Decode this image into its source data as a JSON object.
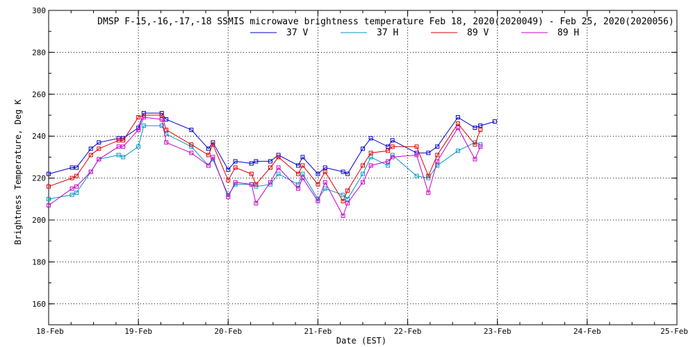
{
  "chart_data": {
    "type": "line",
    "title": "DMSP F-15,-16,-17,-18 SSMIS microwave brightness temperature Feb 18, 2020(2020049) - Feb 25, 2020(2020056)",
    "xlabel": "Date (EST)",
    "ylabel": "Brightness Temperature, Deg K",
    "x_ticks": [
      "18-Feb",
      "19-Feb",
      "20-Feb",
      "21-Feb",
      "22-Feb",
      "23-Feb",
      "24-Feb",
      "25-Feb"
    ],
    "x_range_days": [
      0,
      7
    ],
    "ylim": [
      150,
      300
    ],
    "y_ticks": [
      160,
      180,
      200,
      220,
      240,
      260,
      280,
      300
    ],
    "grid": true,
    "legend_position": "top-center",
    "series": [
      {
        "name": "37 V",
        "color": "#0000c8",
        "x": [
          0.0,
          0.26,
          0.31,
          0.47,
          0.56,
          0.78,
          0.83,
          1.0,
          1.06,
          1.26,
          1.31,
          1.59,
          1.78,
          1.83,
          2.0,
          2.08,
          2.26,
          2.31,
          2.47,
          2.56,
          2.78,
          2.83,
          3.0,
          3.08,
          3.28,
          3.33,
          3.5,
          3.59,
          3.78,
          3.83,
          4.1,
          4.23,
          4.33,
          4.56,
          4.75,
          4.81,
          4.97
        ],
        "values": [
          222,
          225,
          225,
          234,
          237,
          239,
          239,
          244,
          251,
          251,
          248,
          243,
          234,
          237,
          224,
          228,
          227,
          228,
          228,
          231,
          226,
          230,
          222,
          225,
          223,
          222,
          234,
          239,
          235,
          238,
          232,
          232,
          235,
          249,
          244,
          245,
          247
        ]
      },
      {
        "name": "37 H",
        "color": "#0096c8",
        "x": [
          0.0,
          0.26,
          0.31,
          0.47,
          0.56,
          0.78,
          0.83,
          1.0,
          1.06,
          1.26,
          1.31,
          1.59,
          1.78,
          1.83,
          2.0,
          2.08,
          2.26,
          2.31,
          2.47,
          2.56,
          2.78,
          2.83,
          3.0,
          3.08,
          3.28,
          3.33,
          3.5,
          3.59,
          3.78,
          3.83,
          4.1,
          4.23,
          4.33,
          4.56,
          4.75,
          4.81
        ],
        "values": [
          210,
          212,
          213,
          223,
          229,
          231,
          230,
          235,
          245,
          245,
          241,
          235,
          226,
          229,
          212,
          217,
          217,
          216,
          217,
          222,
          217,
          222,
          210,
          215,
          212,
          210,
          222,
          230,
          226,
          231,
          221,
          220,
          226,
          233,
          237,
          236
        ]
      },
      {
        "name": "89 V",
        "color": "#dc0000",
        "x": [
          0.0,
          0.26,
          0.31,
          0.47,
          0.56,
          0.78,
          0.83,
          1.0,
          1.06,
          1.26,
          1.31,
          1.59,
          1.78,
          1.83,
          2.0,
          2.08,
          2.26,
          2.31,
          2.47,
          2.56,
          2.78,
          2.83,
          3.0,
          3.08,
          3.28,
          3.33,
          3.5,
          3.59,
          3.78,
          3.83,
          4.1,
          4.23,
          4.33,
          4.56,
          4.75,
          4.81
        ],
        "values": [
          216,
          220,
          221,
          231,
          234,
          238,
          238,
          249,
          250,
          250,
          243,
          236,
          231,
          236,
          219,
          225,
          222,
          217,
          225,
          230,
          222,
          226,
          217,
          223,
          209,
          214,
          226,
          232,
          233,
          235,
          235,
          221,
          231,
          246,
          236,
          243
        ]
      },
      {
        "name": "89 H",
        "color": "#c800c8",
        "x": [
          0.0,
          0.26,
          0.31,
          0.47,
          0.56,
          0.78,
          0.83,
          1.0,
          1.06,
          1.26,
          1.31,
          1.59,
          1.78,
          1.83,
          2.0,
          2.08,
          2.26,
          2.31,
          2.47,
          2.56,
          2.78,
          2.83,
          3.0,
          3.08,
          3.28,
          3.33,
          3.5,
          3.59,
          3.78,
          3.83,
          4.1,
          4.23,
          4.33,
          4.56,
          4.75,
          4.81
        ],
        "values": [
          207,
          215,
          216,
          223,
          229,
          235,
          235,
          243,
          249,
          248,
          237,
          232,
          226,
          230,
          211,
          218,
          217,
          208,
          218,
          225,
          215,
          220,
          209,
          218,
          202,
          208,
          218,
          226,
          228,
          230,
          231,
          213,
          228,
          244,
          229,
          235
        ]
      }
    ]
  }
}
